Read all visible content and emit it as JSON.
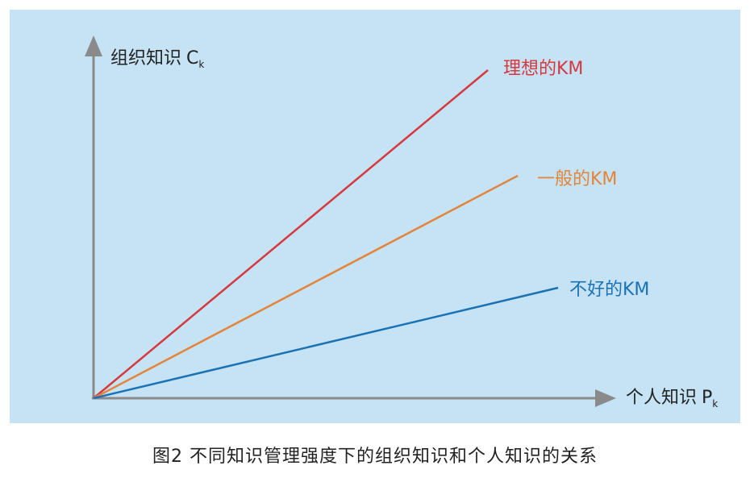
{
  "diagram": {
    "y_axis_label": "组织知识",
    "y_axis_var": "C",
    "y_axis_sub": "k",
    "x_axis_label": "个人知识",
    "x_axis_var": "P",
    "x_axis_sub": "k",
    "lines": [
      {
        "label": "理想的KM",
        "color": "#d6383e"
      },
      {
        "label": "一般的KM",
        "color": "#e4843a"
      },
      {
        "label": "不好的KM",
        "color": "#1a72b4"
      }
    ],
    "axis_color": "#8a8a8a"
  },
  "caption": "图2  不同知识管理强度下的组织知识和个人知识的关系"
}
